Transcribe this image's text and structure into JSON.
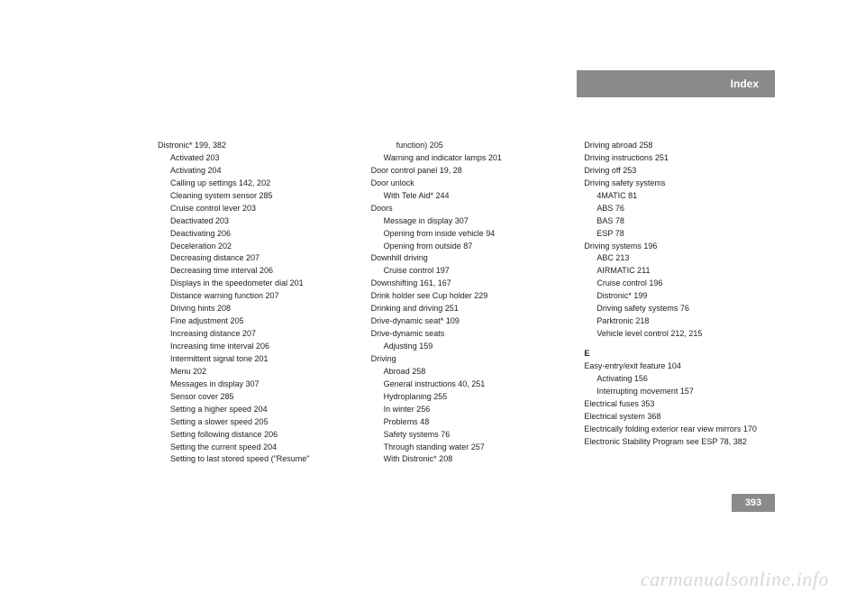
{
  "header": {
    "title": "Index"
  },
  "page_number": "393",
  "watermark": "carmanualsonline.info",
  "col1": [
    {
      "t": "Distronic* 199, 382",
      "i": 0
    },
    {
      "t": "Activated 203",
      "i": 1
    },
    {
      "t": "Activating 204",
      "i": 1
    },
    {
      "t": "Calling up settings 142, 202",
      "i": 1
    },
    {
      "t": "Cleaning system sensor 285",
      "i": 1
    },
    {
      "t": "Cruise control lever 203",
      "i": 1
    },
    {
      "t": "Deactivated 203",
      "i": 1
    },
    {
      "t": "Deactivating 206",
      "i": 1
    },
    {
      "t": "Deceleration 202",
      "i": 1
    },
    {
      "t": "Decreasing distance 207",
      "i": 1
    },
    {
      "t": "Decreasing time interval 206",
      "i": 1
    },
    {
      "t": "Displays in the speedometer dial 201",
      "i": 1
    },
    {
      "t": "Distance warning function 207",
      "i": 1
    },
    {
      "t": "Driving hints 208",
      "i": 1
    },
    {
      "t": "Fine adjustment 205",
      "i": 1
    },
    {
      "t": "Increasing distance 207",
      "i": 1
    },
    {
      "t": "Increasing time interval 206",
      "i": 1
    },
    {
      "t": "Intermittent signal tone 201",
      "i": 1
    },
    {
      "t": "Menu 202",
      "i": 1
    },
    {
      "t": "Messages in display 307",
      "i": 1
    },
    {
      "t": "Sensor cover 285",
      "i": 1
    },
    {
      "t": "Setting a higher speed 204",
      "i": 1
    },
    {
      "t": "Setting a slower speed 205",
      "i": 1
    },
    {
      "t": "Setting following distance 206",
      "i": 1
    },
    {
      "t": "Setting the current speed 204",
      "i": 1
    },
    {
      "t": "Setting to last stored speed (\"Resume\"",
      "i": 1
    }
  ],
  "col2": [
    {
      "t": "function) 205",
      "i": 2
    },
    {
      "t": "Warning and indicator lamps 201",
      "i": 1
    },
    {
      "t": "Door control panel 19, 28",
      "i": 0
    },
    {
      "t": "Door unlock",
      "i": 0
    },
    {
      "t": "With Tele Aid* 244",
      "i": 1
    },
    {
      "t": "Doors",
      "i": 0
    },
    {
      "t": "Message in display 307",
      "i": 1
    },
    {
      "t": "Opening from inside vehicle 94",
      "i": 1
    },
    {
      "t": "Opening from outside 87",
      "i": 1
    },
    {
      "t": "Downhill driving",
      "i": 0
    },
    {
      "t": "Cruise control 197",
      "i": 1
    },
    {
      "t": "Downshifting 161, 167",
      "i": 0
    },
    {
      "t": "Drink holder see Cup holder 229",
      "i": 0
    },
    {
      "t": "Drinking and driving 251",
      "i": 0
    },
    {
      "t": "Drive-dynamic seat* 109",
      "i": 0
    },
    {
      "t": "Drive-dynamic seats",
      "i": 0
    },
    {
      "t": "Adjusting 159",
      "i": 1
    },
    {
      "t": "Driving",
      "i": 0
    },
    {
      "t": "Abroad 258",
      "i": 1
    },
    {
      "t": "General instructions 40, 251",
      "i": 1
    },
    {
      "t": "Hydroplaning 255",
      "i": 1
    },
    {
      "t": "In winter 256",
      "i": 1
    },
    {
      "t": "Problems 48",
      "i": 1
    },
    {
      "t": "Safety systems 76",
      "i": 1
    },
    {
      "t": "Through standing water 257",
      "i": 1
    },
    {
      "t": "With Distronic* 208",
      "i": 1
    }
  ],
  "col3": [
    {
      "t": "Driving abroad 258",
      "i": 0
    },
    {
      "t": "Driving instructions 251",
      "i": 0
    },
    {
      "t": "Driving off 253",
      "i": 0
    },
    {
      "t": "Driving safety systems",
      "i": 0
    },
    {
      "t": "4MATIC 81",
      "i": 1
    },
    {
      "t": "ABS 76",
      "i": 1
    },
    {
      "t": "BAS 78",
      "i": 1
    },
    {
      "t": "ESP 78",
      "i": 1
    },
    {
      "t": "Driving systems 196",
      "i": 0
    },
    {
      "t": "ABC 213",
      "i": 1
    },
    {
      "t": "AIRMATIC 211",
      "i": 1
    },
    {
      "t": "Cruise control 196",
      "i": 1
    },
    {
      "t": "Distronic* 199",
      "i": 1
    },
    {
      "t": "Driving safety systems 76",
      "i": 1
    },
    {
      "t": "Parktronic 218",
      "i": 1
    },
    {
      "t": "Vehicle level control 212, 215",
      "i": 1
    },
    {
      "t": "E",
      "i": 0,
      "letter": true
    },
    {
      "t": "Easy-entry/exit feature 104",
      "i": 0
    },
    {
      "t": "Activating 156",
      "i": 1
    },
    {
      "t": "Interrupting movement 157",
      "i": 1
    },
    {
      "t": "Electrical fuses 353",
      "i": 0
    },
    {
      "t": "Electrical system 368",
      "i": 0
    },
    {
      "t": "Electrically folding exterior rear view mirrors 170",
      "i": 0,
      "hang": true
    },
    {
      "t": "Electronic Stability Program see ESP 78, 382",
      "i": 0,
      "hang": true
    }
  ]
}
